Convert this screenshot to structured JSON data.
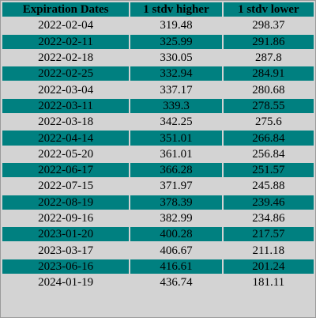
{
  "table": {
    "columns": [
      "Expiration Dates",
      "1 stdv higher",
      "1 stdv lower"
    ],
    "rows": [
      [
        "2022-02-04",
        "319.48",
        "298.37"
      ],
      [
        "2022-02-11",
        "325.99",
        "291.86"
      ],
      [
        "2022-02-18",
        "330.05",
        "287.8"
      ],
      [
        "2022-02-25",
        "332.94",
        "284.91"
      ],
      [
        "2022-03-04",
        "337.17",
        "280.68"
      ],
      [
        "2022-03-11",
        "339.3",
        "278.55"
      ],
      [
        "2022-03-18",
        "342.25",
        "275.6"
      ],
      [
        "2022-04-14",
        "351.01",
        "266.84"
      ],
      [
        "2022-05-20",
        "361.01",
        "256.84"
      ],
      [
        "2022-06-17",
        "366.28",
        "251.57"
      ],
      [
        "2022-07-15",
        "371.97",
        "245.88"
      ],
      [
        "2022-08-19",
        "378.39",
        "239.46"
      ],
      [
        "2022-09-16",
        "382.99",
        "234.86"
      ],
      [
        "2023-01-20",
        "400.28",
        "217.57"
      ],
      [
        "2023-03-17",
        "406.67",
        "211.18"
      ],
      [
        "2023-06-16",
        "416.61",
        "201.24"
      ],
      [
        "2024-01-19",
        "436.74",
        "181.11"
      ]
    ]
  },
  "colors": {
    "header_bg": "#008080",
    "row_alt_bg": "#008080",
    "row_bg": "#d3d3d3",
    "text": "#000000"
  }
}
